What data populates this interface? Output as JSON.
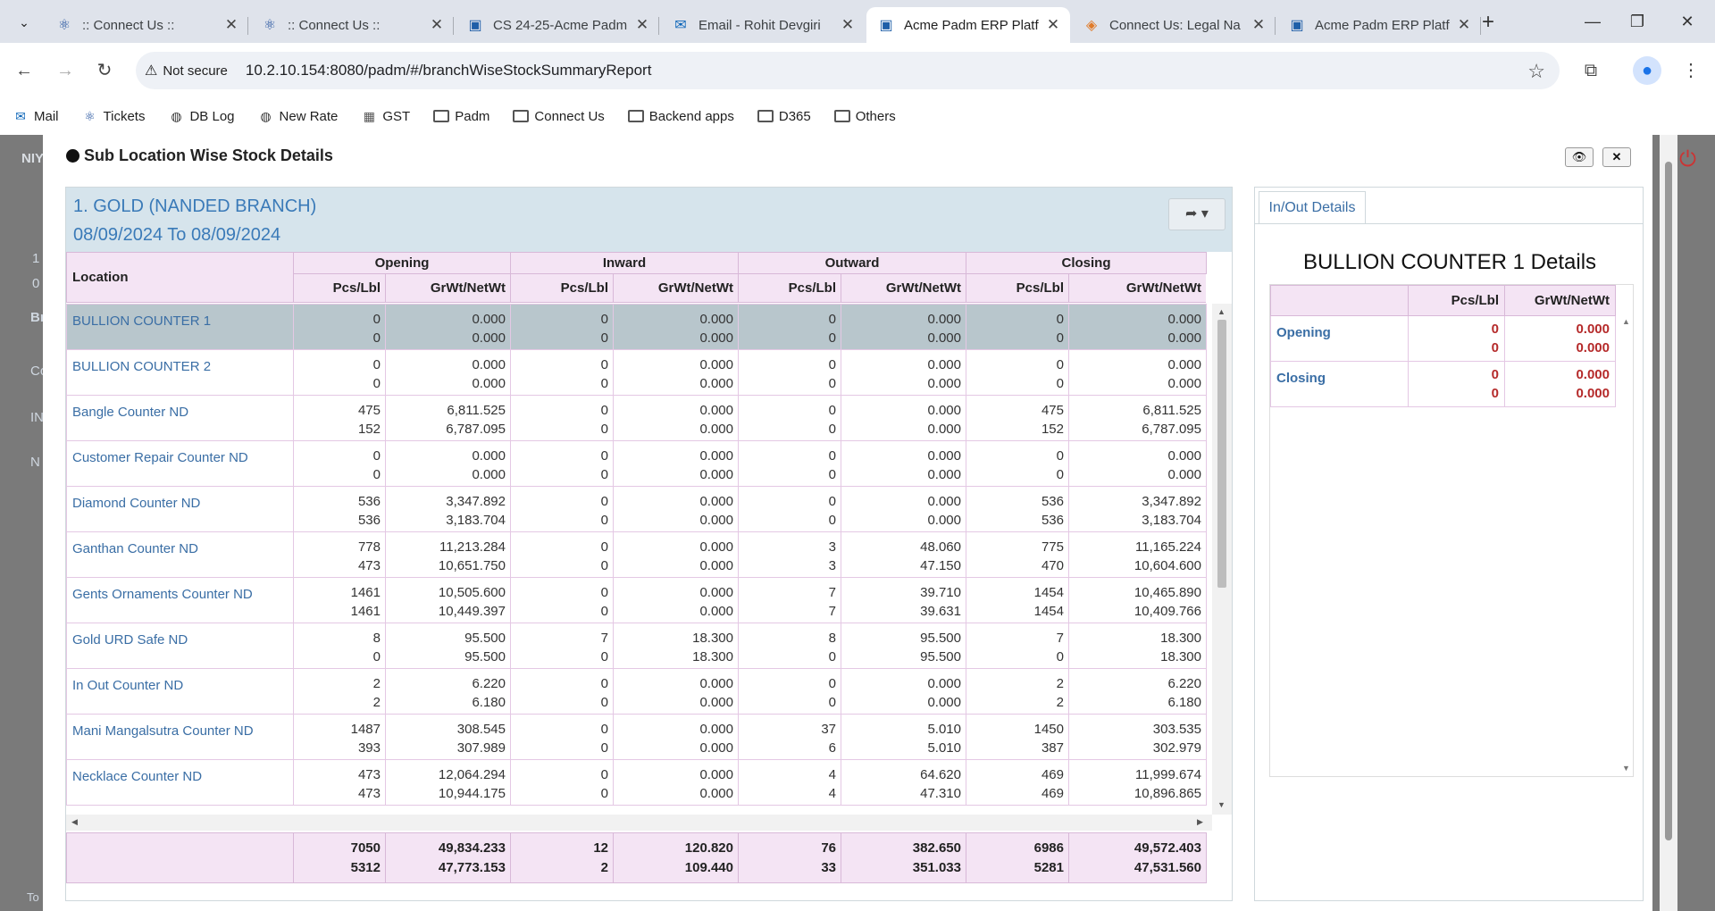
{
  "browser": {
    "tabs": [
      {
        "title": ":: Connect Us ::",
        "icon": "react-icon",
        "active": false
      },
      {
        "title": ":: Connect Us ::",
        "icon": "react-icon",
        "active": false
      },
      {
        "title": "CS 24-25-Acme Padm",
        "icon": "app-icon",
        "active": false
      },
      {
        "title": "Email - Rohit Devgiri",
        "icon": "outlook-icon",
        "active": false
      },
      {
        "title": "Acme Padm ERP Platf",
        "icon": "app-icon",
        "active": true
      },
      {
        "title": "Connect Us: Legal Na",
        "icon": "connect-icon",
        "active": false
      },
      {
        "title": "Acme Padm ERP Platf",
        "icon": "app-icon",
        "active": false
      }
    ],
    "security_label": "Not secure",
    "url": "10.2.10.154:8080/padm/#/branchWiseStockSummaryReport",
    "bookmarks": [
      {
        "label": "Mail",
        "icon": "outlook-icon"
      },
      {
        "label": "Tickets",
        "icon": "react-icon"
      },
      {
        "label": "DB Log",
        "icon": "globe-icon"
      },
      {
        "label": "New Rate",
        "icon": "globe-icon"
      },
      {
        "label": "GST",
        "icon": "gst-icon"
      },
      {
        "label": "Padm",
        "icon": "folder-icon"
      },
      {
        "label": "Connect Us",
        "icon": "folder-icon"
      },
      {
        "label": "Backend apps",
        "icon": "folder-icon"
      },
      {
        "label": "D365",
        "icon": "folder-icon"
      },
      {
        "label": "Others",
        "icon": "folder-icon"
      }
    ]
  },
  "background_app": {
    "frag_1": "NIY",
    "frag_2": "Br",
    "frag_3": "Co",
    "frag_4": "IN",
    "frag_5": "N",
    "frag_6": "1",
    "frag_7": "0",
    "frag_8": "To"
  },
  "modal": {
    "title": "Sub Location Wise Stock Details",
    "panel_title": "1. GOLD (NANDED BRANCH)",
    "date_range": "08/09/2024 To 08/09/2024",
    "columns": {
      "location": "Location",
      "groups": [
        "Opening",
        "Inward",
        "Outward",
        "Closing"
      ],
      "pcs": "Pcs/Lbl",
      "wt": "GrWt/NetWt"
    },
    "rows": [
      {
        "loc": "BULLION COUNTER 1",
        "v": [
          [
            "0",
            "0"
          ],
          [
            "0.000",
            "0.000"
          ],
          [
            "0",
            "0"
          ],
          [
            "0.000",
            "0.000"
          ],
          [
            "0",
            "0"
          ],
          [
            "0.000",
            "0.000"
          ],
          [
            "0",
            "0"
          ],
          [
            "0.000",
            "0.000"
          ]
        ]
      },
      {
        "loc": "BULLION COUNTER 2",
        "v": [
          [
            "0",
            "0"
          ],
          [
            "0.000",
            "0.000"
          ],
          [
            "0",
            "0"
          ],
          [
            "0.000",
            "0.000"
          ],
          [
            "0",
            "0"
          ],
          [
            "0.000",
            "0.000"
          ],
          [
            "0",
            "0"
          ],
          [
            "0.000",
            "0.000"
          ]
        ]
      },
      {
        "loc": "Bangle Counter ND",
        "v": [
          [
            "475",
            "152"
          ],
          [
            "6,811.525",
            "6,787.095"
          ],
          [
            "0",
            "0"
          ],
          [
            "0.000",
            "0.000"
          ],
          [
            "0",
            "0"
          ],
          [
            "0.000",
            "0.000"
          ],
          [
            "475",
            "152"
          ],
          [
            "6,811.525",
            "6,787.095"
          ]
        ]
      },
      {
        "loc": "Customer Repair Counter ND",
        "v": [
          [
            "0",
            "0"
          ],
          [
            "0.000",
            "0.000"
          ],
          [
            "0",
            "0"
          ],
          [
            "0.000",
            "0.000"
          ],
          [
            "0",
            "0"
          ],
          [
            "0.000",
            "0.000"
          ],
          [
            "0",
            "0"
          ],
          [
            "0.000",
            "0.000"
          ]
        ]
      },
      {
        "loc": "Diamond Counter ND",
        "v": [
          [
            "536",
            "536"
          ],
          [
            "3,347.892",
            "3,183.704"
          ],
          [
            "0",
            "0"
          ],
          [
            "0.000",
            "0.000"
          ],
          [
            "0",
            "0"
          ],
          [
            "0.000",
            "0.000"
          ],
          [
            "536",
            "536"
          ],
          [
            "3,347.892",
            "3,183.704"
          ]
        ]
      },
      {
        "loc": "Ganthan Counter ND",
        "v": [
          [
            "778",
            "473"
          ],
          [
            "11,213.284",
            "10,651.750"
          ],
          [
            "0",
            "0"
          ],
          [
            "0.000",
            "0.000"
          ],
          [
            "3",
            "3"
          ],
          [
            "48.060",
            "47.150"
          ],
          [
            "775",
            "470"
          ],
          [
            "11,165.224",
            "10,604.600"
          ]
        ]
      },
      {
        "loc": "Gents Ornaments Counter ND",
        "v": [
          [
            "1461",
            "1461"
          ],
          [
            "10,505.600",
            "10,449.397"
          ],
          [
            "0",
            "0"
          ],
          [
            "0.000",
            "0.000"
          ],
          [
            "7",
            "7"
          ],
          [
            "39.710",
            "39.631"
          ],
          [
            "1454",
            "1454"
          ],
          [
            "10,465.890",
            "10,409.766"
          ]
        ]
      },
      {
        "loc": "Gold URD Safe ND",
        "v": [
          [
            "8",
            "0"
          ],
          [
            "95.500",
            "95.500"
          ],
          [
            "7",
            "0"
          ],
          [
            "18.300",
            "18.300"
          ],
          [
            "8",
            "0"
          ],
          [
            "95.500",
            "95.500"
          ],
          [
            "7",
            "0"
          ],
          [
            "18.300",
            "18.300"
          ]
        ]
      },
      {
        "loc": "In Out Counter ND",
        "v": [
          [
            "2",
            "2"
          ],
          [
            "6.220",
            "6.180"
          ],
          [
            "0",
            "0"
          ],
          [
            "0.000",
            "0.000"
          ],
          [
            "0",
            "0"
          ],
          [
            "0.000",
            "0.000"
          ],
          [
            "2",
            "2"
          ],
          [
            "6.220",
            "6.180"
          ]
        ]
      },
      {
        "loc": "Mani Mangalsutra Counter ND",
        "v": [
          [
            "1487",
            "393"
          ],
          [
            "308.545",
            "307.989"
          ],
          [
            "0",
            "0"
          ],
          [
            "0.000",
            "0.000"
          ],
          [
            "37",
            "6"
          ],
          [
            "5.010",
            "5.010"
          ],
          [
            "1450",
            "387"
          ],
          [
            "303.535",
            "302.979"
          ]
        ]
      },
      {
        "loc": "Necklace Counter ND",
        "v": [
          [
            "473",
            "473"
          ],
          [
            "12,064.294",
            "10,944.175"
          ],
          [
            "0",
            "0"
          ],
          [
            "0.000",
            "0.000"
          ],
          [
            "4",
            "4"
          ],
          [
            "64.620",
            "47.310"
          ],
          [
            "469",
            "469"
          ],
          [
            "11,999.674",
            "10,896.865"
          ]
        ]
      }
    ],
    "totals": [
      [
        "7050",
        "5312"
      ],
      [
        "49,834.233",
        "47,773.153"
      ],
      [
        "12",
        "2"
      ],
      [
        "120.820",
        "109.440"
      ],
      [
        "76",
        "33"
      ],
      [
        "382.650",
        "351.033"
      ],
      [
        "6986",
        "5281"
      ],
      [
        "49,572.403",
        "47,531.560"
      ]
    ]
  },
  "details": {
    "tab_label": "In/Out Details",
    "title": "BULLION COUNTER 1 Details",
    "col_pcs": "Pcs/Lbl",
    "col_wt": "GrWt/NetWt",
    "rows": [
      {
        "label": "Opening",
        "pcs": [
          "0",
          "0"
        ],
        "wt": [
          "0.000",
          "0.000"
        ]
      },
      {
        "label": "Closing",
        "pcs": [
          "0",
          "0"
        ],
        "wt": [
          "0.000",
          "0.000"
        ]
      }
    ]
  },
  "colors": {
    "accent": "#3a7ab8",
    "header_bg": "#f4e4f4",
    "selected_row": "#b8c6cc",
    "detail_value": "#b52a2a"
  }
}
